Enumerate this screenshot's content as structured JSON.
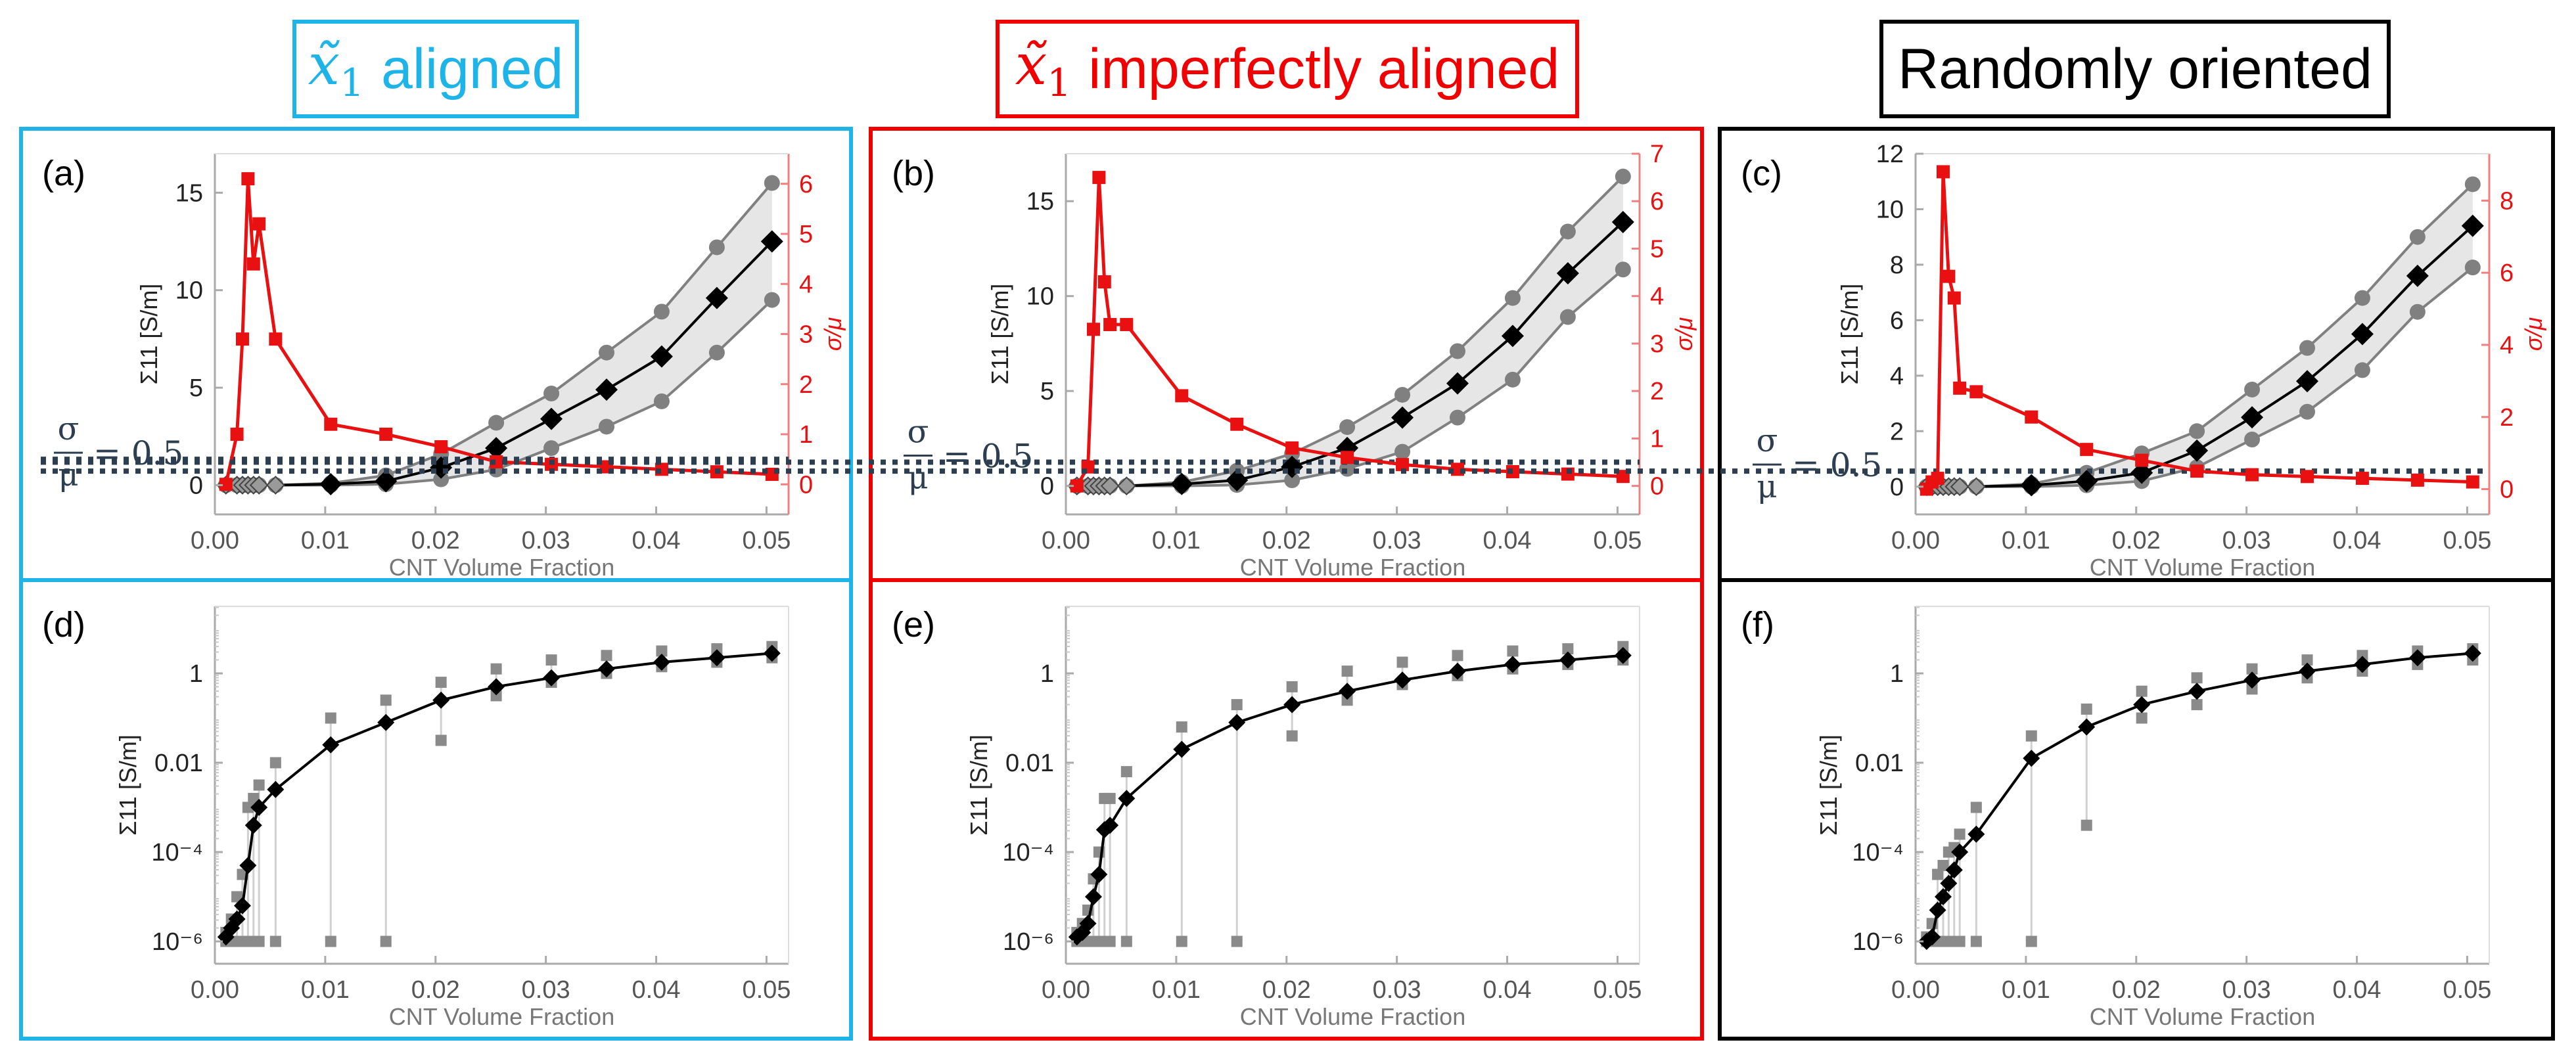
{
  "columns": [
    {
      "id": "aligned",
      "title": "aligned",
      "has_symbol": true,
      "color": "#1fb4e8"
    },
    {
      "id": "imperfect",
      "title": "imperfectly aligned",
      "has_symbol": true,
      "color": "#f00000"
    },
    {
      "id": "random",
      "title": "Randomly oriented",
      "has_symbol": false,
      "color": "#000000"
    }
  ],
  "symbol": {
    "base": "x̃",
    "sub": "1"
  },
  "threshold_label": {
    "sigma": "σ",
    "mu": "μ",
    "eq": "= 0.5",
    "value": 0.5
  },
  "tick_labels": {
    "p1e6": "10⁻⁶",
    "p1e4": "10⁻⁴",
    "p001": "0.01",
    "p1": "1"
  },
  "colors": {
    "mean": "#000000",
    "band": "#808080",
    "band_fill": "#e6e6e6",
    "ratio": "#e81010",
    "threshold": "#2c3e50",
    "axis": "#aaaaaa",
    "label": "#555555"
  },
  "chart_data": [
    {
      "panel": "(a)",
      "type": "line",
      "row": "top",
      "col": 0,
      "xlabel": "CNT Volume Fraction",
      "ylabel": "Σ11 [S/m]",
      "ylabel2": "σ/μ",
      "xlim": [
        0,
        0.052
      ],
      "xticks": [
        0,
        0.01,
        0.02,
        0.03,
        0.04,
        0.05
      ],
      "ylim": [
        -1.5,
        17
      ],
      "yticks": [
        0,
        5,
        10,
        15
      ],
      "y2lim": [
        -0.6,
        6.6
      ],
      "y2ticks": [
        0,
        1,
        2,
        3,
        4,
        5,
        6
      ],
      "x": [
        0.001,
        0.002,
        0.0025,
        0.003,
        0.0035,
        0.004,
        0.0055,
        0.0105,
        0.0155,
        0.0205,
        0.0255,
        0.0305,
        0.0355,
        0.0405,
        0.0455,
        0.0505
      ],
      "series": [
        {
          "name": "mean",
          "values": [
            0,
            0,
            0,
            0,
            0,
            0,
            0,
            0.05,
            0.2,
            0.9,
            1.9,
            3.4,
            4.9,
            6.6,
            9.6,
            12.5
          ]
        },
        {
          "name": "upper",
          "values": [
            0,
            0,
            0,
            0,
            0,
            0,
            0,
            0.1,
            0.5,
            1.6,
            3.2,
            4.7,
            6.8,
            8.9,
            12.2,
            15.5
          ]
        },
        {
          "name": "lower",
          "values": [
            0,
            0,
            0,
            0,
            0,
            0,
            0,
            0,
            0.05,
            0.3,
            0.8,
            1.9,
            3.0,
            4.3,
            6.8,
            9.5
          ]
        },
        {
          "name": "sigma/mu",
          "axis": "right",
          "values": [
            0,
            1.0,
            2.9,
            6.1,
            4.4,
            5.2,
            2.9,
            1.2,
            1.0,
            0.75,
            0.45,
            0.4,
            0.35,
            0.3,
            0.25,
            0.2
          ]
        }
      ]
    },
    {
      "panel": "(b)",
      "type": "line",
      "row": "top",
      "col": 1,
      "xlabel": "CNT Volume Fraction",
      "ylabel": "Σ11 [S/m]",
      "ylabel2": "σ/μ",
      "xlim": [
        0,
        0.052
      ],
      "xticks": [
        0,
        0.01,
        0.02,
        0.03,
        0.04,
        0.05
      ],
      "ylim": [
        -1.5,
        17.5
      ],
      "yticks": [
        0,
        5,
        10,
        15
      ],
      "y2lim": [
        -0.6,
        7
      ],
      "y2ticks": [
        0,
        1,
        2,
        3,
        4,
        5,
        6,
        7
      ],
      "x": [
        0.001,
        0.002,
        0.0025,
        0.003,
        0.0035,
        0.004,
        0.0055,
        0.0105,
        0.0155,
        0.0205,
        0.0255,
        0.0305,
        0.0355,
        0.0405,
        0.0455,
        0.0505
      ],
      "series": [
        {
          "name": "mean",
          "values": [
            0,
            0,
            0,
            0,
            0,
            0,
            0,
            0.1,
            0.3,
            1.0,
            2.0,
            3.6,
            5.4,
            7.9,
            11.2,
            13.9
          ]
        },
        {
          "name": "upper",
          "values": [
            0,
            0,
            0,
            0,
            0,
            0,
            0,
            0.2,
            0.8,
            1.7,
            3.1,
            4.8,
            7.1,
            9.9,
            13.4,
            16.3
          ]
        },
        {
          "name": "lower",
          "values": [
            0,
            0,
            0,
            0,
            0,
            0,
            0,
            0,
            0.05,
            0.3,
            0.9,
            1.8,
            3.6,
            5.6,
            8.9,
            11.4
          ]
        },
        {
          "name": "sigma/mu",
          "axis": "right",
          "values": [
            0,
            0.4,
            3.3,
            6.5,
            4.3,
            3.4,
            3.4,
            1.9,
            1.3,
            0.8,
            0.6,
            0.45,
            0.35,
            0.3,
            0.25,
            0.2
          ]
        }
      ]
    },
    {
      "panel": "(c)",
      "type": "line",
      "row": "top",
      "col": 2,
      "xlabel": "CNT Volume Fraction",
      "ylabel": "Σ11 [S/m]",
      "ylabel2": "σ/μ",
      "xlim": [
        0,
        0.052
      ],
      "xticks": [
        0,
        0.01,
        0.02,
        0.03,
        0.04,
        0.05
      ],
      "ylim": [
        -1,
        12
      ],
      "yticks": [
        0,
        2,
        4,
        6,
        8,
        10,
        12
      ],
      "y2lim": [
        -0.7,
        9.3
      ],
      "y2ticks": [
        0,
        2,
        4,
        6,
        8
      ],
      "x": [
        0.001,
        0.0015,
        0.002,
        0.0025,
        0.003,
        0.0035,
        0.004,
        0.0055,
        0.0105,
        0.0155,
        0.0205,
        0.0255,
        0.0305,
        0.0355,
        0.0405,
        0.0455,
        0.0505
      ],
      "series": [
        {
          "name": "mean",
          "values": [
            0,
            0,
            0,
            0,
            0,
            0,
            0,
            0,
            0.05,
            0.2,
            0.5,
            1.3,
            2.5,
            3.8,
            5.5,
            7.6,
            9.4
          ]
        },
        {
          "name": "upper",
          "values": [
            0,
            0,
            0,
            0,
            0,
            0,
            0,
            0,
            0.1,
            0.5,
            1.2,
            2.0,
            3.5,
            5.0,
            6.8,
            9.0,
            10.9
          ]
        },
        {
          "name": "lower",
          "values": [
            0,
            0,
            0,
            0,
            0,
            0,
            0,
            0,
            0,
            0.05,
            0.2,
            0.7,
            1.7,
            2.7,
            4.2,
            6.3,
            7.9
          ]
        },
        {
          "name": "sigma/mu",
          "axis": "right",
          "values": [
            0,
            0.2,
            0.3,
            8.8,
            5.9,
            5.3,
            2.8,
            2.7,
            2.0,
            1.1,
            0.8,
            0.5,
            0.4,
            0.35,
            0.3,
            0.25,
            0.2
          ]
        }
      ]
    },
    {
      "panel": "(d)",
      "type": "scatter",
      "row": "bottom",
      "col": 0,
      "yscale": "log",
      "xlabel": "CNT Volume Fraction",
      "ylabel": "Σ11 [S/m]",
      "xlim": [
        0,
        0.052
      ],
      "xticks": [
        0,
        0.01,
        0.02,
        0.03,
        0.04,
        0.05
      ],
      "ylim_log10": [
        -6.5,
        1.5
      ],
      "yticks_log10": [
        -6,
        -4,
        -2,
        0
      ],
      "x": [
        0.001,
        0.0015,
        0.002,
        0.0025,
        0.003,
        0.0035,
        0.004,
        0.0055,
        0.0105,
        0.0155,
        0.0205,
        0.0255,
        0.0305,
        0.0355,
        0.0405,
        0.0455,
        0.0505
      ],
      "mean_log10": [
        -5.9,
        -5.7,
        -5.5,
        -5.2,
        -4.3,
        -3.4,
        -3.0,
        -2.6,
        -1.6,
        -1.1,
        -0.6,
        -0.3,
        -0.1,
        0.1,
        0.25,
        0.35,
        0.45
      ],
      "max_log10": [
        -5.8,
        -5.5,
        -5.0,
        -4.5,
        -3.0,
        -2.8,
        -2.5,
        -2.0,
        -1.0,
        -0.6,
        -0.2,
        0.1,
        0.3,
        0.4,
        0.5,
        0.55,
        0.6
      ],
      "min_log10": [
        -6,
        -6,
        -6,
        -6,
        -6,
        -6,
        -6,
        -6,
        -6,
        -6,
        -1.5,
        -0.5,
        -0.2,
        0,
        0.15,
        0.25,
        0.35
      ]
    },
    {
      "panel": "(e)",
      "type": "scatter",
      "row": "bottom",
      "col": 1,
      "yscale": "log",
      "xlabel": "CNT Volume Fraction",
      "ylabel": "Σ11 [S/m]",
      "xlim": [
        0,
        0.052
      ],
      "xticks": [
        0,
        0.01,
        0.02,
        0.03,
        0.04,
        0.05
      ],
      "ylim_log10": [
        -6.5,
        1.5
      ],
      "yticks_log10": [
        -6,
        -4,
        -2,
        0
      ],
      "x": [
        0.001,
        0.0015,
        0.002,
        0.0025,
        0.003,
        0.0035,
        0.004,
        0.0055,
        0.0105,
        0.0155,
        0.0205,
        0.0255,
        0.0305,
        0.0355,
        0.0405,
        0.0455,
        0.0505
      ],
      "mean_log10": [
        -5.9,
        -5.8,
        -5.6,
        -5.0,
        -4.5,
        -3.5,
        -3.4,
        -2.8,
        -1.7,
        -1.1,
        -0.7,
        -0.4,
        -0.15,
        0.05,
        0.2,
        0.3,
        0.4
      ],
      "max_log10": [
        -5.8,
        -5.6,
        -5.3,
        -4.6,
        -4.0,
        -2.8,
        -2.8,
        -2.2,
        -1.2,
        -0.7,
        -0.3,
        0.05,
        0.25,
        0.4,
        0.5,
        0.55,
        0.6
      ],
      "min_log10": [
        -6,
        -6,
        -6,
        -6,
        -6,
        -6,
        -6,
        -6,
        -6,
        -6,
        -1.4,
        -0.6,
        -0.25,
        -0.05,
        0.1,
        0.2,
        0.3
      ]
    },
    {
      "panel": "(f)",
      "type": "scatter",
      "row": "bottom",
      "col": 2,
      "yscale": "log",
      "xlabel": "CNT Volume Fraction",
      "ylabel": "Σ11 [S/m]",
      "xlim": [
        0,
        0.052
      ],
      "xticks": [
        0,
        0.01,
        0.02,
        0.03,
        0.04,
        0.05
      ],
      "ylim_log10": [
        -6.5,
        1.5
      ],
      "yticks_log10": [
        -6,
        -4,
        -2,
        0
      ],
      "x": [
        0.001,
        0.0015,
        0.002,
        0.0025,
        0.003,
        0.0035,
        0.004,
        0.0055,
        0.0105,
        0.0155,
        0.0205,
        0.0255,
        0.0305,
        0.0355,
        0.0405,
        0.0455,
        0.0505
      ],
      "mean_log10": [
        -6.0,
        -5.9,
        -5.3,
        -5.0,
        -4.7,
        -4.4,
        -4.0,
        -3.6,
        -1.9,
        -1.2,
        -0.7,
        -0.4,
        -0.15,
        0.05,
        0.2,
        0.35,
        0.45
      ],
      "max_log10": [
        -5.9,
        -5.6,
        -4.5,
        -4.3,
        -4.0,
        -3.9,
        -3.6,
        -3.0,
        -1.4,
        -0.8,
        -0.4,
        -0.1,
        0.1,
        0.3,
        0.4,
        0.5,
        0.55
      ],
      "min_log10": [
        -6,
        -6,
        -6,
        -6,
        -6,
        -6,
        -6,
        -6,
        -6,
        -3.4,
        -1.0,
        -0.7,
        -0.35,
        -0.1,
        0.05,
        0.2,
        0.3
      ]
    }
  ]
}
